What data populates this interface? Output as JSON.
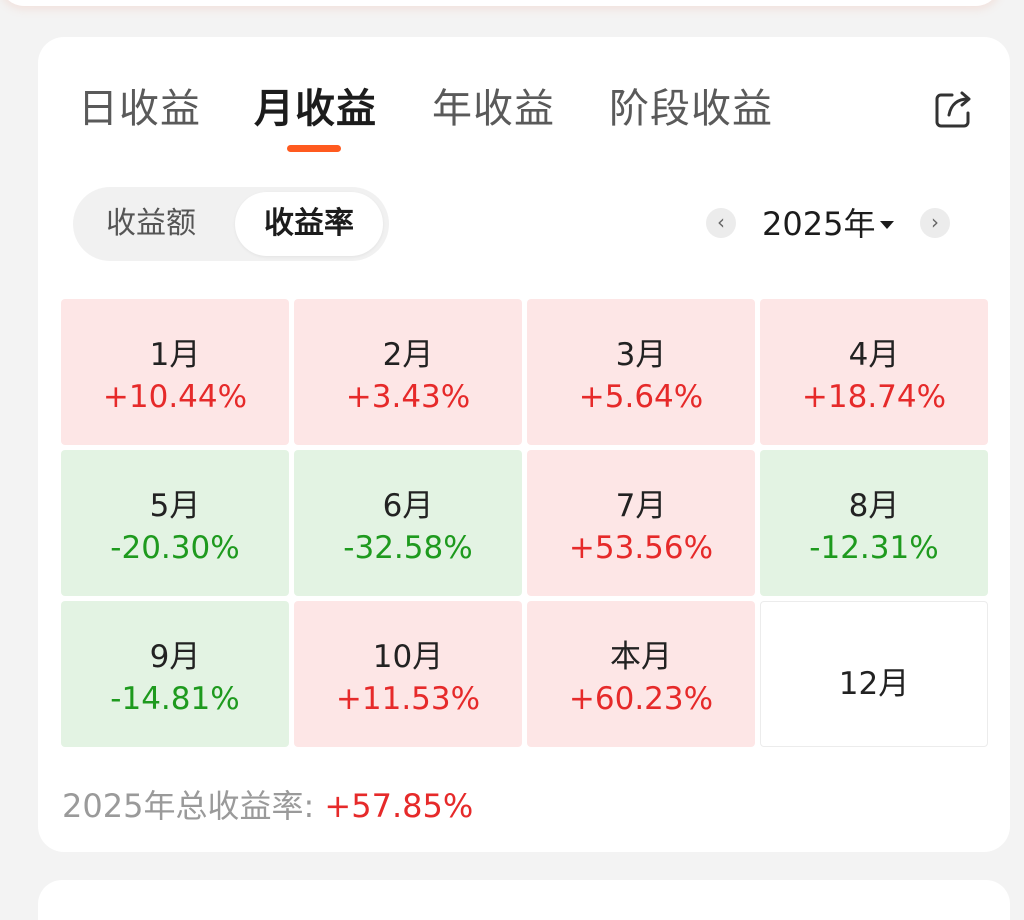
{
  "tabs": [
    {
      "label": "日收益"
    },
    {
      "label": "月收益"
    },
    {
      "label": "年收益"
    },
    {
      "label": "阶段收益"
    }
  ],
  "segment": {
    "amount_label": "收益额",
    "rate_label": "收益率"
  },
  "year_nav": {
    "prev": "‹",
    "year": "2025年",
    "next": "›"
  },
  "months": [
    {
      "label": "1月",
      "value": "+10.44%"
    },
    {
      "label": "2月",
      "value": "+3.43%"
    },
    {
      "label": "3月",
      "value": "+5.64%"
    },
    {
      "label": "4月",
      "value": "+18.74%"
    },
    {
      "label": "5月",
      "value": "-20.30%"
    },
    {
      "label": "6月",
      "value": "-32.58%"
    },
    {
      "label": "7月",
      "value": "+53.56%"
    },
    {
      "label": "8月",
      "value": "-12.31%"
    },
    {
      "label": "9月",
      "value": "-14.81%"
    },
    {
      "label": "10月",
      "value": "+11.53%"
    },
    {
      "label": "本月",
      "value": "+60.23%"
    },
    {
      "label": "12月",
      "value": ""
    }
  ],
  "total": {
    "label": "2025年总收益率: ",
    "value": "+57.85%"
  },
  "colors": {
    "accent": "#ff5a1f",
    "gain": "#e62a2a",
    "loss": "#1e9a1e",
    "gain_bg": "#fde6e6",
    "loss_bg": "#e3f3e3"
  }
}
